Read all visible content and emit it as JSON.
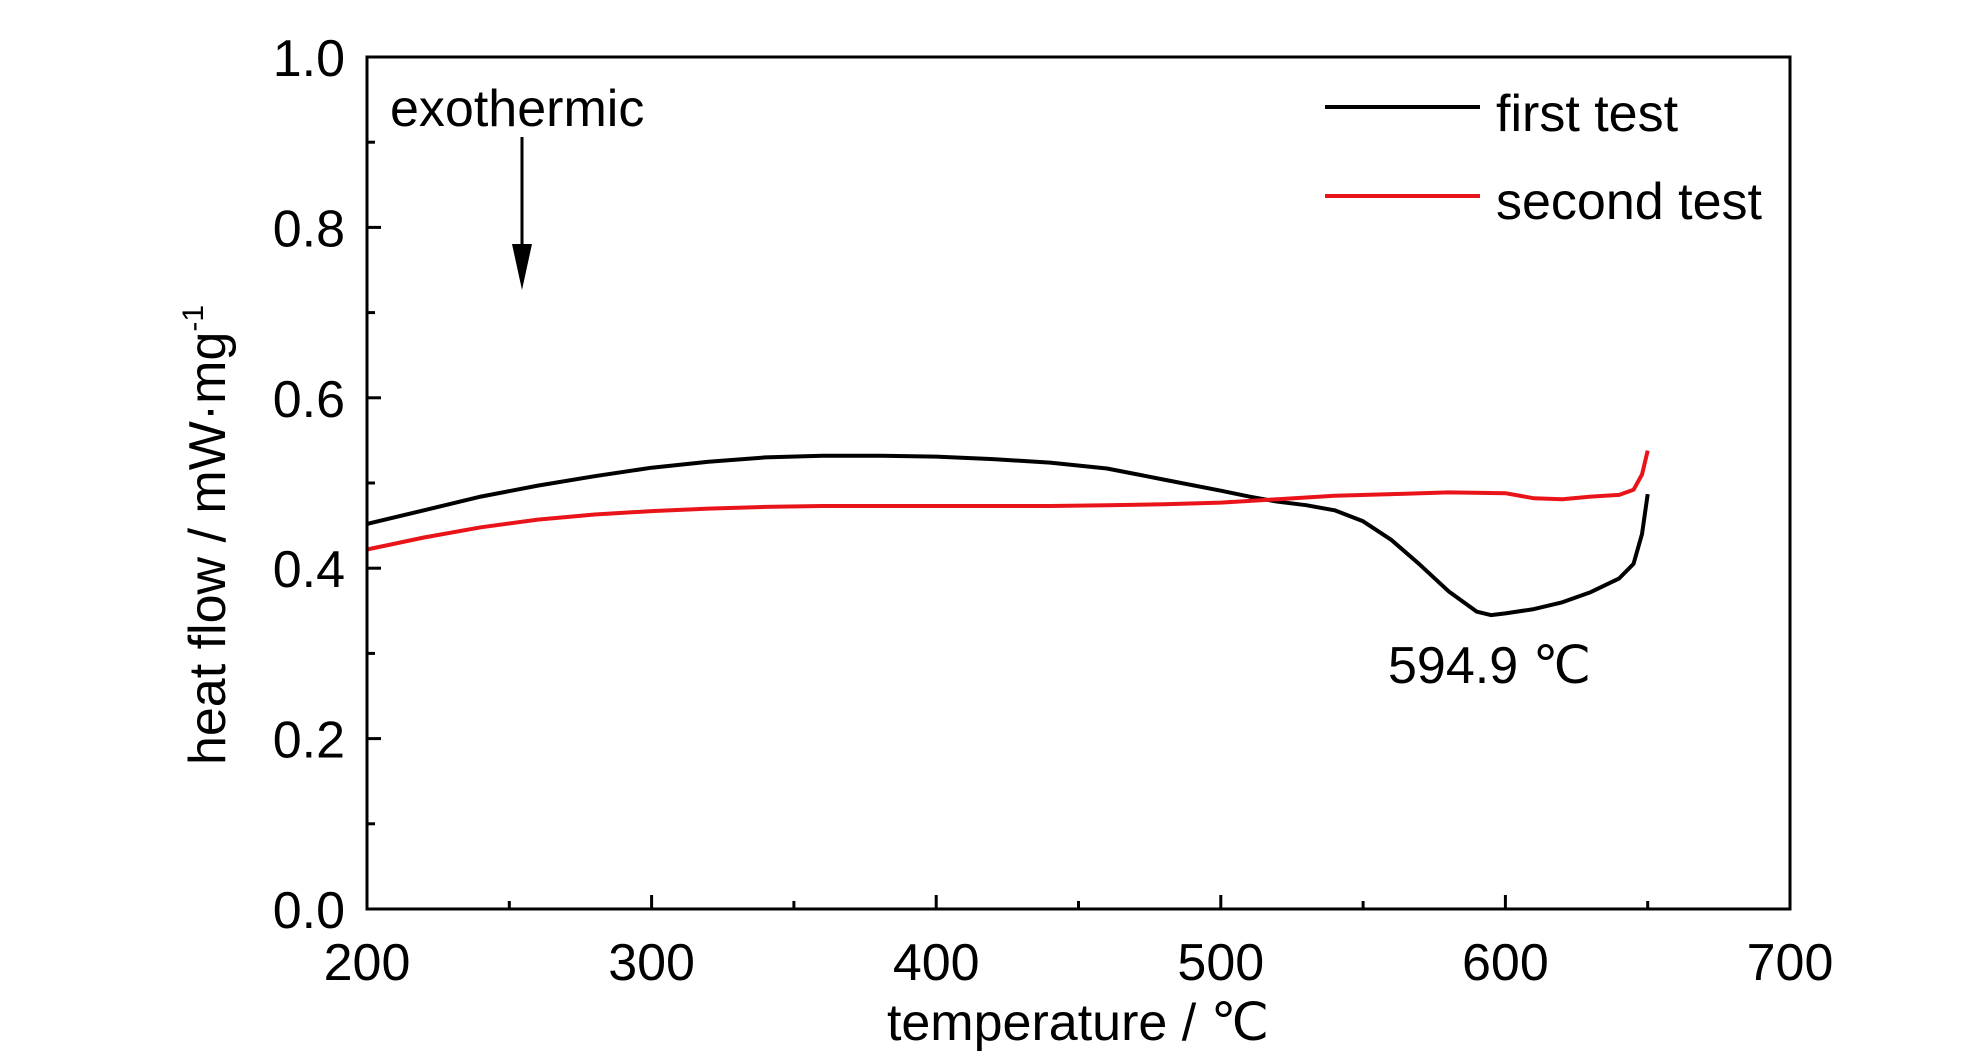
{
  "chart_data": {
    "type": "line",
    "title": "",
    "xlabel": "temperature / ℃",
    "ylabel_main": "heat flow / mW·mg",
    "ylabel_sup": "-1",
    "xlim": [
      200,
      700
    ],
    "ylim": [
      0.0,
      1.0
    ],
    "x_ticks": [
      200,
      300,
      400,
      500,
      600,
      700
    ],
    "y_ticks": [
      0.0,
      0.2,
      0.4,
      0.6,
      0.8,
      1.0
    ],
    "x_tick_labels": [
      "200",
      "300",
      "400",
      "500",
      "600",
      "700"
    ],
    "y_tick_labels": [
      "0.0",
      "0.2",
      "0.4",
      "0.6",
      "0.8",
      "1.0"
    ],
    "grid": false,
    "legend_position": "top-right",
    "series": [
      {
        "name": "first test",
        "color": "#000000",
        "x": [
          200,
          220,
          240,
          260,
          280,
          300,
          320,
          340,
          360,
          380,
          400,
          420,
          440,
          460,
          480,
          500,
          510,
          520,
          530,
          540,
          550,
          560,
          570,
          580,
          590,
          594.9,
          600,
          610,
          620,
          630,
          640,
          645,
          648,
          650
        ],
        "y": [
          0.452,
          0.468,
          0.484,
          0.497,
          0.508,
          0.518,
          0.525,
          0.53,
          0.532,
          0.532,
          0.531,
          0.528,
          0.524,
          0.517,
          0.504,
          0.491,
          0.484,
          0.478,
          0.474,
          0.468,
          0.455,
          0.433,
          0.404,
          0.373,
          0.349,
          0.345,
          0.347,
          0.352,
          0.36,
          0.372,
          0.388,
          0.405,
          0.44,
          0.487
        ]
      },
      {
        "name": "second test",
        "color": "#e8141a",
        "x": [
          200,
          220,
          240,
          260,
          280,
          300,
          320,
          340,
          360,
          380,
          400,
          420,
          440,
          460,
          480,
          500,
          520,
          540,
          560,
          580,
          600,
          610,
          620,
          630,
          640,
          645,
          648,
          650
        ],
        "y": [
          0.422,
          0.436,
          0.448,
          0.457,
          0.463,
          0.467,
          0.47,
          0.472,
          0.473,
          0.473,
          0.473,
          0.473,
          0.473,
          0.474,
          0.475,
          0.477,
          0.481,
          0.485,
          0.487,
          0.489,
          0.488,
          0.482,
          0.481,
          0.484,
          0.486,
          0.492,
          0.51,
          0.538
        ]
      }
    ],
    "annotations": [
      {
        "text": "exothermic",
        "kind": "arrow-down"
      },
      {
        "text": "594.9 ℃",
        "x": 594.9,
        "y": 0.345
      }
    ]
  }
}
